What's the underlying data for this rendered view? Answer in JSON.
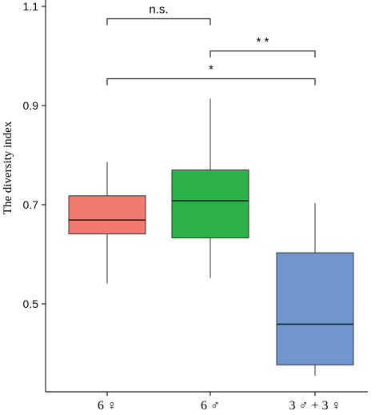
{
  "chart_data": {
    "type": "boxplot",
    "ylabel": "The diversity index",
    "ylim": [
      0.35,
      1.1
    ],
    "yticks": [
      {
        "value": 0.5,
        "label": "0.5"
      },
      {
        "value": 0.7,
        "label": "0.7"
      },
      {
        "value": 0.9,
        "label": "0.9"
      },
      {
        "value": 1.1,
        "label": "1.1"
      }
    ],
    "categories": [
      "6 ♀",
      "6 ♂",
      "3 ♂ + 3 ♀"
    ],
    "boxes": [
      {
        "category": "6 ♀",
        "min": 0.541,
        "q1": 0.641,
        "median": 0.669,
        "q3": 0.718,
        "max": 0.786,
        "color": "#F07A70"
      },
      {
        "category": "6 ♂",
        "min": 0.552,
        "q1": 0.633,
        "median": 0.708,
        "q3": 0.77,
        "max": 0.914,
        "color": "#2DB24A"
      },
      {
        "category": "3 ♂ + 3 ♀",
        "min": 0.355,
        "q1": 0.377,
        "median": 0.459,
        "q3": 0.603,
        "max": 0.703,
        "color": "#7096CF"
      }
    ],
    "significance": [
      {
        "from": 0,
        "to": 1,
        "label": "n.s.",
        "y": 1.075
      },
      {
        "from": 1,
        "to": 2,
        "label": "* *",
        "y": 1.01
      },
      {
        "from": 0,
        "to": 2,
        "label": "*",
        "y": 0.954
      }
    ],
    "grid": false,
    "legend": "none"
  }
}
